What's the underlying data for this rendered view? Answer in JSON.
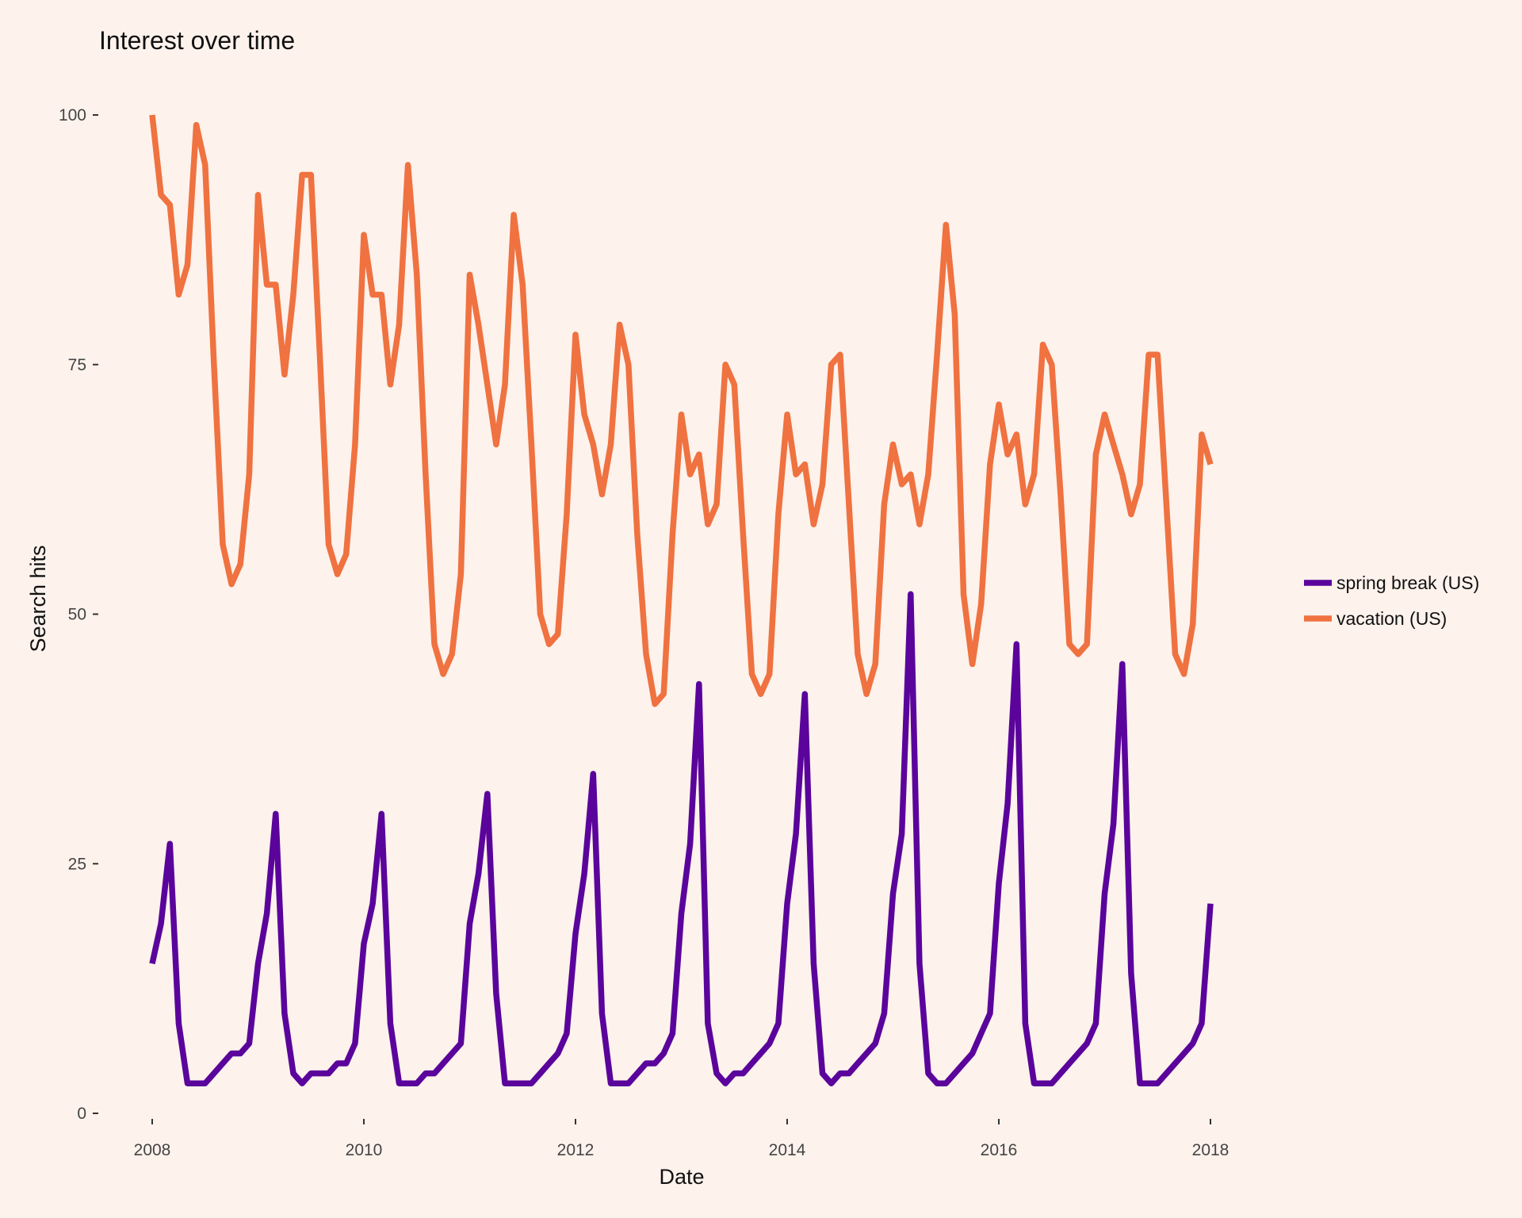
{
  "chart_data": {
    "type": "line",
    "title": "Interest over time",
    "xlabel": "Date",
    "ylabel": "Search hits",
    "xlim": [
      2008.0,
      2018.0
    ],
    "ylim": [
      0,
      100
    ],
    "x_ticks": [
      "2008",
      "2010",
      "2012",
      "2014",
      "2016",
      "2018"
    ],
    "y_ticks": [
      "0",
      "25",
      "50",
      "75",
      "100"
    ],
    "grid": false,
    "legend_position": "right",
    "x_start": "2008-01",
    "x_end": "2018-01",
    "series": [
      {
        "name": "spring break (US)",
        "color": "#5a049c",
        "values": [
          15,
          19,
          27,
          9,
          3,
          3,
          3,
          4,
          5,
          6,
          6,
          7,
          15,
          20,
          30,
          10,
          4,
          3,
          4,
          4,
          4,
          5,
          5,
          7,
          17,
          21,
          30,
          9,
          3,
          3,
          3,
          4,
          4,
          5,
          6,
          7,
          19,
          24,
          32,
          12,
          3,
          3,
          3,
          3,
          4,
          5,
          6,
          8,
          18,
          24,
          34,
          10,
          3,
          3,
          3,
          4,
          5,
          5,
          6,
          8,
          20,
          27,
          43,
          9,
          4,
          3,
          4,
          4,
          5,
          6,
          7,
          9,
          21,
          28,
          42,
          15,
          4,
          3,
          4,
          4,
          5,
          6,
          7,
          10,
          22,
          28,
          52,
          15,
          4,
          3,
          3,
          4,
          5,
          6,
          8,
          10,
          23,
          31,
          47,
          9,
          3,
          3,
          3,
          4,
          5,
          6,
          7,
          9,
          22,
          29,
          45,
          14,
          3,
          3,
          3,
          4,
          5,
          6,
          7,
          9,
          21
        ]
      },
      {
        "name": "vacation (US)",
        "color": "#ef7240",
        "values": [
          100,
          92,
          91,
          82,
          85,
          99,
          95,
          75,
          57,
          53,
          55,
          64,
          92,
          83,
          83,
          74,
          82,
          94,
          94,
          76,
          57,
          54,
          56,
          67,
          88,
          82,
          82,
          73,
          79,
          95,
          84,
          64,
          47,
          44,
          46,
          54,
          84,
          79,
          73,
          67,
          73,
          90,
          83,
          67,
          50,
          47,
          48,
          60,
          78,
          70,
          67,
          62,
          67,
          79,
          75,
          58,
          46,
          41,
          42,
          58,
          70,
          64,
          66,
          59,
          61,
          75,
          73,
          58,
          44,
          42,
          44,
          60,
          70,
          64,
          65,
          59,
          63,
          75,
          76,
          61,
          46,
          42,
          45,
          61,
          67,
          63,
          64,
          59,
          64,
          76,
          89,
          80,
          52,
          45,
          51,
          65,
          71,
          66,
          68,
          61,
          64,
          77,
          75,
          62,
          47,
          46,
          47,
          66,
          70,
          67,
          64,
          60,
          63,
          76,
          76,
          61,
          46,
          44,
          49,
          68,
          65
        ]
      }
    ]
  }
}
